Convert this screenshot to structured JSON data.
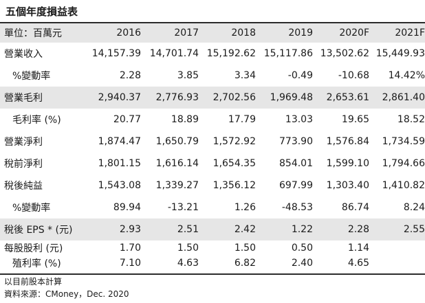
{
  "title": "五個年度損益表",
  "table": {
    "headers": [
      "單位：百萬元",
      "2016",
      "2017",
      "2018",
      "2019",
      "2020F",
      "2021F"
    ],
    "rows": [
      {
        "label": "營業收入",
        "values": [
          "14,157.39",
          "14,701.74",
          "15,192.62",
          "15,117.86",
          "13,502.62",
          "15,449.93"
        ]
      },
      {
        "label": "%變動率",
        "values": [
          "2.28",
          "3.85",
          "3.34",
          "-0.49",
          "-10.68",
          "14.42%"
        ]
      },
      {
        "label": "營業毛利",
        "values": [
          "2,940.37",
          "2,776.93",
          "2,702.56",
          "1,969.48",
          "2,653.61",
          "2,861.40"
        ]
      },
      {
        "label": "毛利率 (%)",
        "values": [
          "20.77",
          "18.89",
          "17.79",
          "13.03",
          "19.65",
          "18.52"
        ]
      },
      {
        "label": "營業淨利",
        "values": [
          "1,874.47",
          "1,650.79",
          "1,572.92",
          "773.90",
          "1,576.84",
          "1,734.59"
        ]
      },
      {
        "label": "稅前淨利",
        "values": [
          "1,801.15",
          "1,616.14",
          "1,654.35",
          "854.01",
          "1,599.10",
          "1,794.66"
        ]
      },
      {
        "label": "稅後純益",
        "values": [
          "1,543.08",
          "1,339.27",
          "1,356.12",
          "697.99",
          "1,303.40",
          "1,410.82"
        ]
      },
      {
        "label": "%變動率",
        "values": [
          "89.94",
          "-13.21",
          "1.26",
          "-48.53",
          "86.74",
          "8.24"
        ]
      },
      {
        "label": "稅後 EPS * (元)",
        "values": [
          "2.93",
          "2.51",
          "2.42",
          "1.22",
          "2.28",
          "2.55"
        ]
      },
      {
        "label": "每股股利 (元)",
        "values": [
          "1.70",
          "1.50",
          "1.50",
          "0.50",
          "1.14",
          ""
        ]
      },
      {
        "label": "殖利率 (%)",
        "values": [
          "7.10",
          "4.63",
          "6.82",
          "2.40",
          "4.65",
          ""
        ]
      }
    ]
  },
  "notes": {
    "basis": "以目前股本計算",
    "source": "資料來源：CMoney，Dec. 2020"
  },
  "colors": {
    "band": "#e6e6e6",
    "rule": "#2b2b2b",
    "text": "#1a1a1a"
  }
}
